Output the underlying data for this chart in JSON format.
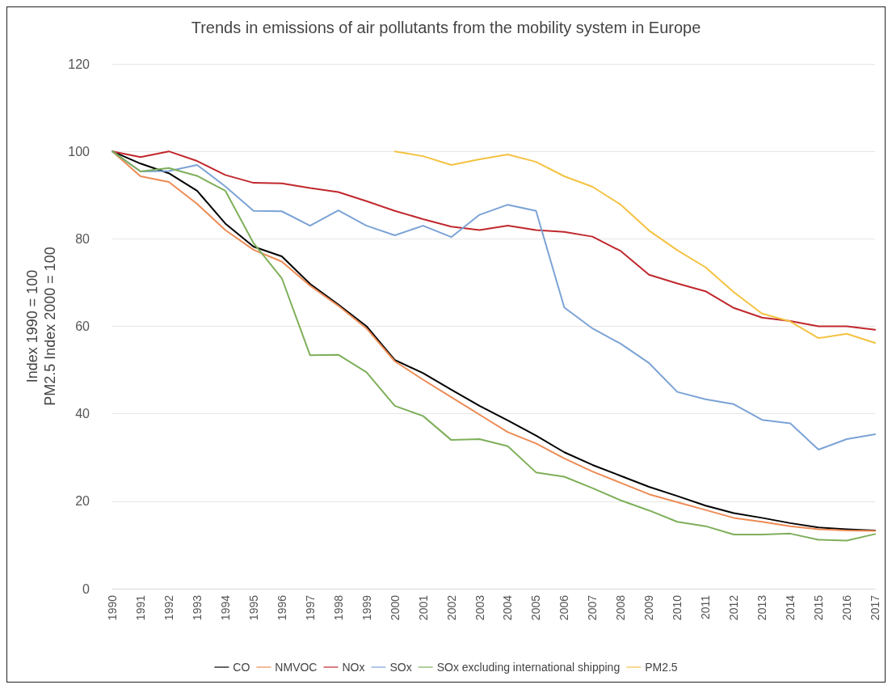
{
  "chart_data": {
    "type": "line",
    "title": "Trends in emissions of air pollutants from the mobility system in Europe",
    "ylabel": "Index 1990 = 100\nPM2.5 Index 2000 = 100",
    "categories": [
      "1990",
      "1991",
      "1992",
      "1993",
      "1994",
      "1995",
      "1996",
      "1997",
      "1998",
      "1999",
      "2000",
      "2001",
      "2002",
      "2003",
      "2004",
      "2005",
      "2006",
      "2007",
      "2008",
      "2009",
      "2010",
      "2011",
      "2012",
      "2013",
      "2014",
      "2015",
      "2016",
      "2017"
    ],
    "series": [
      {
        "name": "CO",
        "color": "#000000",
        "values": [
          100,
          97.2,
          95,
          91,
          83.5,
          78.2,
          76,
          69.7,
          65,
          60,
          52.3,
          49.3,
          45.5,
          41.8,
          38.5,
          35,
          31.2,
          28.3,
          25.8,
          23.3,
          21.2,
          19,
          17.3,
          16.2,
          15,
          14,
          13.6,
          13.3
        ]
      },
      {
        "name": "NMVOC",
        "color": "#ed8b55",
        "values": [
          100,
          94.3,
          93,
          88,
          82,
          77.5,
          74.8,
          69.3,
          64.7,
          59.5,
          52,
          47.8,
          43.8,
          39.8,
          35.8,
          33.2,
          29.8,
          26.8,
          24.2,
          21.6,
          19.8,
          18,
          16.2,
          15.3,
          14.3,
          13.6,
          13.3,
          13.2
        ]
      },
      {
        "name": "NOx",
        "color": "#c0282d",
        "values": [
          100,
          98.7,
          100,
          97.8,
          94.6,
          92.8,
          92.7,
          91.6,
          90.7,
          88.6,
          86.4,
          84.5,
          82.8,
          82,
          83,
          82,
          81.6,
          80.5,
          77.2,
          71.8,
          69.8,
          68,
          64.2,
          62,
          61.2,
          60,
          60,
          59.2
        ]
      },
      {
        "name": "SOx",
        "color": "#7ba3d5",
        "values": [
          100,
          95.4,
          95.5,
          96.9,
          92,
          86.4,
          86.3,
          83,
          86.5,
          83,
          80.8,
          83,
          80.4,
          85.5,
          87.8,
          86.4,
          64.3,
          59.5,
          56,
          51.6,
          45,
          43.3,
          42.2,
          38.6,
          37.8,
          31.8,
          34.2,
          35.3
        ]
      },
      {
        "name": "SOx excluding international shipping",
        "color": "#7eaf5a",
        "values": [
          100,
          95.4,
          96.2,
          94.4,
          91,
          79,
          71,
          53.4,
          53.5,
          49.5,
          41.8,
          39.5,
          34,
          34.2,
          32.6,
          26.6,
          25.6,
          23,
          20.2,
          17.9,
          15.3,
          14.3,
          12.4,
          12.4,
          12.6,
          11.2,
          11,
          12.5
        ]
      },
      {
        "name": "PM2.5",
        "color": "#f4c242",
        "values": [
          null,
          null,
          null,
          null,
          null,
          null,
          null,
          null,
          null,
          null,
          100,
          98.9,
          96.9,
          98.2,
          99.3,
          97.6,
          94.3,
          91.9,
          87.8,
          81.9,
          77.4,
          73.5,
          67.8,
          62.9,
          61.1,
          57.3,
          58.3,
          56.2
        ]
      }
    ],
    "ylim": [
      0,
      120
    ],
    "yticks": [
      0,
      20,
      40,
      60,
      80,
      100,
      120
    ],
    "grid": "y",
    "legend": "bottom",
    "marker": "none",
    "line_style": "solid"
  }
}
